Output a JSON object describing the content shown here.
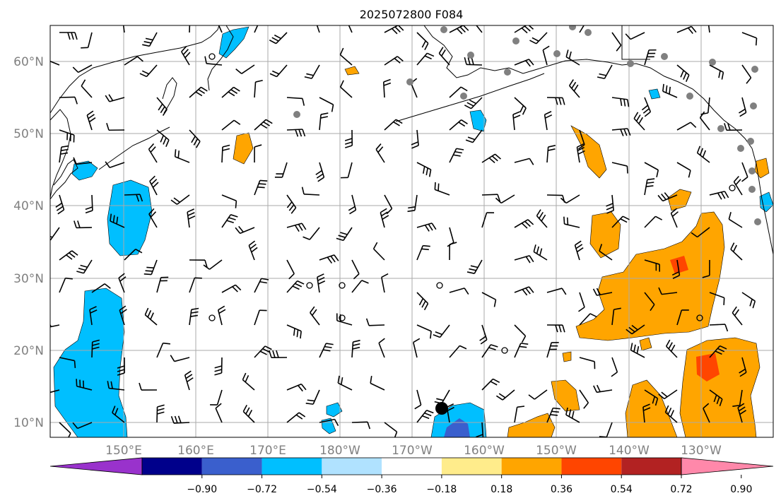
{
  "title": "2025072800 F084",
  "map": {
    "lat_labels": [
      "60°N",
      "50°N",
      "40°N",
      "30°N",
      "20°N",
      "10°N"
    ],
    "lon_labels": [
      "150°E",
      "160°E",
      "170°E",
      "180°W",
      "170°W",
      "160°W",
      "150°W",
      "140°W",
      "130°W"
    ],
    "grid": true,
    "colors": {
      "land_outline": "#000000",
      "gridline": "#aaaaaa",
      "station_dot": "#808080",
      "positive_anomaly": "#ffa500",
      "strong_positive_anomaly": "#ff4500",
      "negative_anomaly": "#00bfff",
      "strong_negative_anomaly": "#3a5fcd"
    }
  },
  "colorbar": {
    "levels": [
      "−0.90",
      "−0.72",
      "−0.54",
      "−0.36",
      "−0.18",
      "0.18",
      "0.36",
      "0.54",
      "0.72",
      "0.90"
    ],
    "colors": [
      "#9932cc",
      "#00008b",
      "#3a5fcd",
      "#00bfff",
      "#b0e2ff",
      "#ffffff",
      "#ffec8b",
      "#ffa500",
      "#ff4500",
      "#b22222",
      "#ff88aa"
    ],
    "extend": "both"
  }
}
